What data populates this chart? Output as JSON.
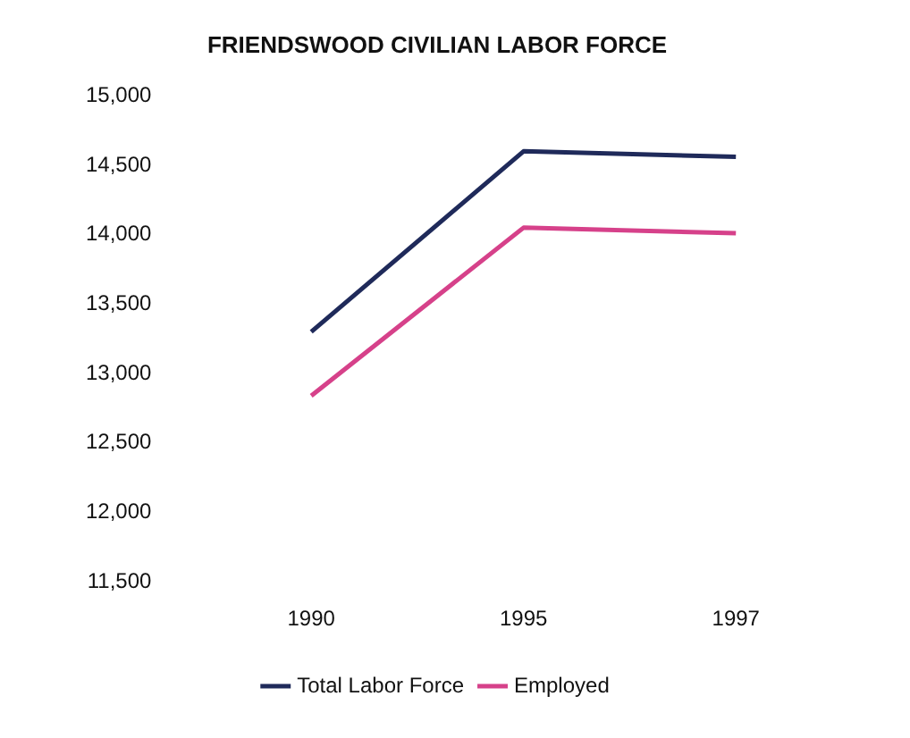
{
  "chart_data": {
    "type": "line",
    "title": "FRIENDSWOOD CIVILIAN LABOR FORCE",
    "categories": [
      "1990",
      "1995",
      "1997"
    ],
    "series": [
      {
        "name": "Total Labor Force",
        "color": "#1f2a5a",
        "values": [
          13300,
          14600,
          14560
        ]
      },
      {
        "name": "Employed",
        "color": "#d6418a",
        "values": [
          12840,
          14050,
          14010
        ]
      }
    ],
    "ylim": [
      11500,
      15000
    ],
    "yticks": [
      {
        "value": 11500,
        "label": "11,500"
      },
      {
        "value": 12000,
        "label": "12,000"
      },
      {
        "value": 12500,
        "label": "12,500"
      },
      {
        "value": 13000,
        "label": "13,000"
      },
      {
        "value": 13500,
        "label": "13,500"
      },
      {
        "value": 14000,
        "label": "14,000"
      },
      {
        "value": 14500,
        "label": "14,500"
      },
      {
        "value": 15000,
        "label": "15,000"
      }
    ],
    "grid": false,
    "legend": "bottom",
    "marker": "none",
    "line_style": "solid"
  }
}
